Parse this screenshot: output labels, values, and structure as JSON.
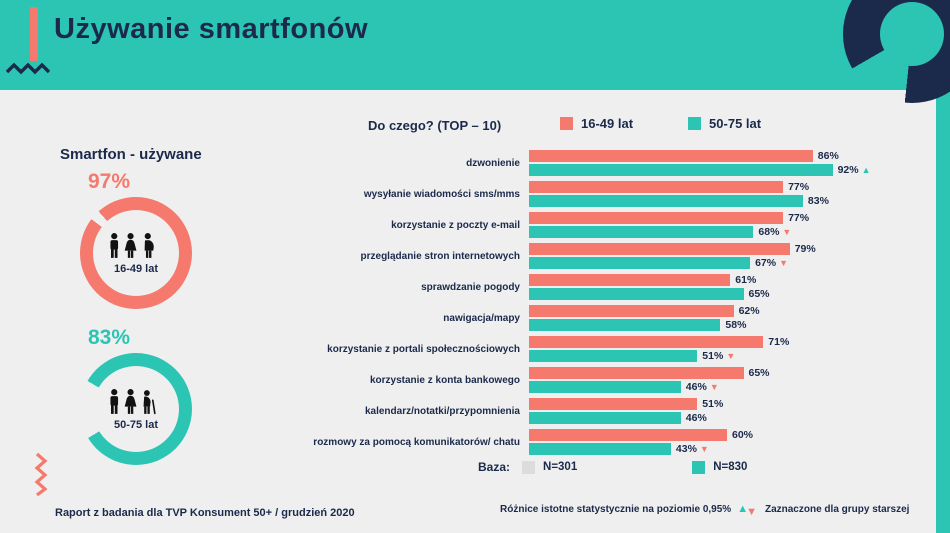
{
  "colors": {
    "teal": "#2CC5B4",
    "salmon": "#F5796D",
    "navy": "#1B2A4A",
    "bg": "#EFEFEF",
    "swatch-gray": "#DCDCDC",
    "icon-black": "#121212"
  },
  "header": {
    "title": "Używanie smartfonów"
  },
  "left_panel": {
    "title": "Smartfon - używane",
    "donuts": [
      {
        "pct_text": "97%",
        "value": 97,
        "label": "16-49 lat",
        "color": "salmon"
      },
      {
        "pct_text": "83%",
        "value": 83,
        "label": "50-75 lat",
        "color": "teal"
      }
    ]
  },
  "chart": {
    "title": "Do czego? (TOP – 10)",
    "legend": [
      {
        "label": "16-49 lat",
        "color": "salmon"
      },
      {
        "label": "50-75 lat",
        "color": "teal"
      }
    ],
    "rows": [
      {
        "label": "dzwonienie",
        "young": {
          "v": 86,
          "text": "86%"
        },
        "old": {
          "v": 92,
          "text": "92%",
          "marker": "up"
        }
      },
      {
        "label": "wysyłanie wiadomości sms/mms",
        "young": {
          "v": 77,
          "text": "77%"
        },
        "old": {
          "v": 83,
          "text": "83%"
        }
      },
      {
        "label": "korzystanie z poczty e-mail",
        "young": {
          "v": 77,
          "text": "77%"
        },
        "old": {
          "v": 68,
          "text": "68%",
          "marker": "down"
        }
      },
      {
        "label": "przeglądanie stron internetowych",
        "young": {
          "v": 79,
          "text": "79%"
        },
        "old": {
          "v": 67,
          "text": "67%",
          "marker": "down"
        }
      },
      {
        "label": "sprawdzanie pogody",
        "young": {
          "v": 61,
          "text": "61%"
        },
        "old": {
          "v": 65,
          "text": "65%"
        }
      },
      {
        "label": "nawigacja/mapy",
        "young": {
          "v": 62,
          "text": "62%"
        },
        "old": {
          "v": 58,
          "text": "58%"
        }
      },
      {
        "label": "korzystanie z portali społecznościowych",
        "young": {
          "v": 71,
          "text": "71%"
        },
        "old": {
          "v": 51,
          "text": "51%",
          "marker": "down"
        }
      },
      {
        "label": "korzystanie z konta bankowego",
        "young": {
          "v": 65,
          "text": "65%"
        },
        "old": {
          "v": 46,
          "text": "46%",
          "marker": "down"
        }
      },
      {
        "label": "kalendarz/notatki/przypomnienia",
        "young": {
          "v": 51,
          "text": "51%"
        },
        "old": {
          "v": 46,
          "text": "46%"
        }
      },
      {
        "label": "rozmowy za pomocą komunikatorów/ chatu",
        "young": {
          "v": 60,
          "text": "60%"
        },
        "old": {
          "v": 43,
          "text": "43%",
          "marker": "down"
        }
      }
    ],
    "base": {
      "label": "Baza:",
      "young_n": "N=301",
      "old_n": "N=830"
    }
  },
  "footnotes": {
    "significance": "Różnice istotne statystycznie na poziomie 0,95%",
    "marked_for": "Zaznaczone dla grupy starszej",
    "source": "Raport z badania dla TVP Konsument 50+ / grudzień 2020"
  },
  "chart_data": [
    {
      "type": "pie",
      "variant": "donut-gauge",
      "title": "Smartfon - używane",
      "series": [
        {
          "name": "16-49 lat",
          "value_pct": 97
        },
        {
          "name": "50-75 lat",
          "value_pct": 83
        }
      ]
    },
    {
      "type": "bar",
      "orientation": "horizontal",
      "title": "Do czego? (TOP – 10)",
      "categories": [
        "dzwonienie",
        "wysyłanie wiadomości sms/mms",
        "korzystanie z poczty e-mail",
        "przeglądanie stron internetowych",
        "sprawdzanie pogody",
        "nawigacja/mapy",
        "korzystanie z portali społecznościowych",
        "korzystanie z konta bankowego",
        "kalendarz/notatki/przypomnienia",
        "rozmowy za pomocą komunikatorów/ chatu"
      ],
      "series": [
        {
          "name": "16-49 lat",
          "base": "N=301",
          "values": [
            86,
            77,
            77,
            79,
            61,
            62,
            71,
            65,
            51,
            60
          ]
        },
        {
          "name": "50-75 lat",
          "base": "N=830",
          "values": [
            92,
            83,
            68,
            67,
            65,
            58,
            51,
            46,
            46,
            43
          ]
        }
      ],
      "unit": "%",
      "xlim": [
        0,
        100
      ],
      "legend_position": "top",
      "significance": {
        "up_rows": [
          0
        ],
        "down_rows": [
          2,
          3,
          6,
          7,
          9
        ],
        "note": "Różnice istotne statystycznie na poziomie 0,95%, zaznaczone dla grupy starszej"
      }
    }
  ]
}
